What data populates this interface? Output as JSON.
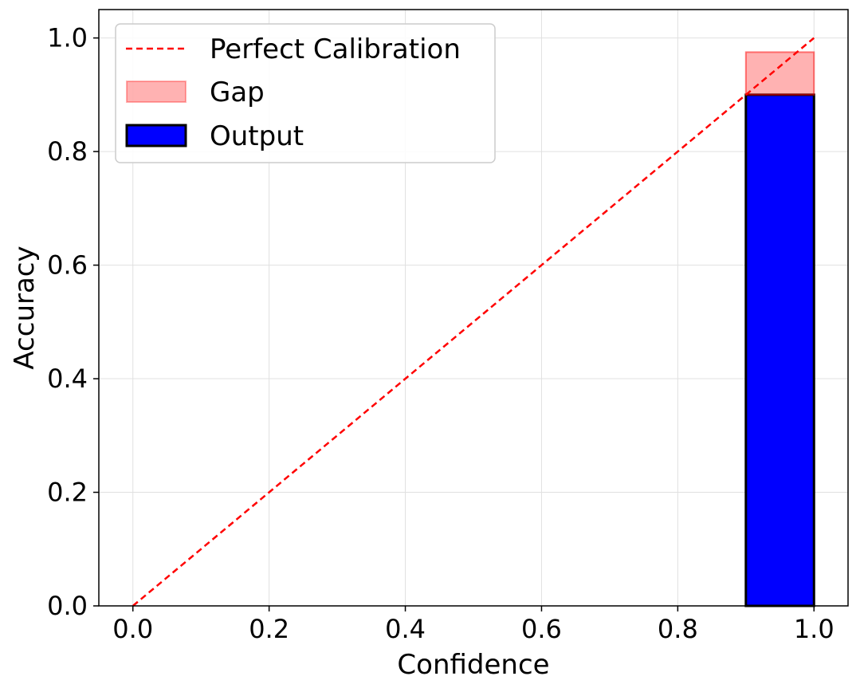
{
  "chart_data": {
    "type": "bar",
    "title": "",
    "xlabel": "Confidence",
    "ylabel": "Accuracy",
    "xlim": [
      -0.05,
      1.05
    ],
    "ylim": [
      0.0,
      1.05
    ],
    "xticks": [
      "0.0",
      "0.2",
      "0.4",
      "0.6",
      "0.8",
      "1.0"
    ],
    "yticks": [
      "0.0",
      "0.2",
      "0.4",
      "0.6",
      "0.8",
      "1.0"
    ],
    "grid": true,
    "legend_position": "top-left",
    "bin_width": 0.1,
    "series": [
      {
        "name": "Output",
        "kind": "bar",
        "color": "#0000ff",
        "edgecolor": "#000000",
        "bins": [
          {
            "x0": 0.9,
            "x1": 1.0,
            "value": 0.9
          }
        ]
      },
      {
        "name": "Gap",
        "kind": "bar",
        "color": "#ff0000",
        "alpha": 0.3,
        "bins": [
          {
            "x0": 0.9,
            "x1": 1.0,
            "bottom": 0.9,
            "top": 0.975
          }
        ]
      },
      {
        "name": "Perfect Calibration",
        "kind": "line",
        "color": "#ff0000",
        "dashed": true,
        "x": [
          0.0,
          1.0
        ],
        "y": [
          0.0,
          1.0
        ]
      }
    ],
    "legend": [
      "Perfect Calibration",
      "Gap",
      "Output"
    ]
  }
}
